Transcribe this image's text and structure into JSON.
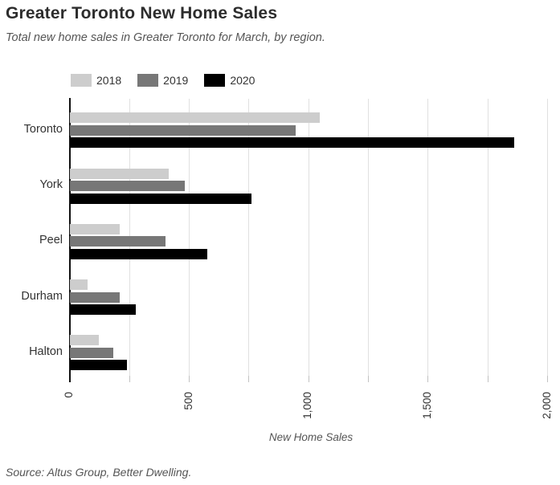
{
  "header": {
    "title": "Greater Toronto New Home Sales",
    "subtitle": "Total new home sales in Greater Toronto for March, by region."
  },
  "source_note": "Source: Altus Group, Better Dwelling.",
  "colors": {
    "background": "#ffffff",
    "title_text": "#2d2d2d",
    "muted_text": "#555555",
    "label_text": "#333333",
    "axis_line": "#111111",
    "gridline": "#e0e0e0"
  },
  "chart_data": {
    "type": "bar",
    "orientation": "horizontal",
    "title": "Greater Toronto New Home Sales",
    "subtitle": "Total new home sales in Greater Toronto for March, by region.",
    "xlabel": "New Home Sales",
    "ylabel": "",
    "categories": [
      "Toronto",
      "York",
      "Peel",
      "Durham",
      "Halton"
    ],
    "series": [
      {
        "name": "2018",
        "color": "#cdcdcd",
        "values": [
          1045,
          415,
          210,
          75,
          120
        ]
      },
      {
        "name": "2019",
        "color": "#777777",
        "values": [
          945,
          480,
          400,
          210,
          180
        ]
      },
      {
        "name": "2020",
        "color": "#000000",
        "values": [
          1860,
          760,
          575,
          275,
          240
        ]
      }
    ],
    "xlim": [
      0,
      2000
    ],
    "xticks": [
      0,
      500,
      1000,
      1500,
      2000
    ],
    "xtick_labels": [
      "0",
      "500",
      "1,000",
      "1,500",
      "2,000"
    ],
    "grid_interval": 250,
    "grid": true,
    "legend_position": "top"
  }
}
